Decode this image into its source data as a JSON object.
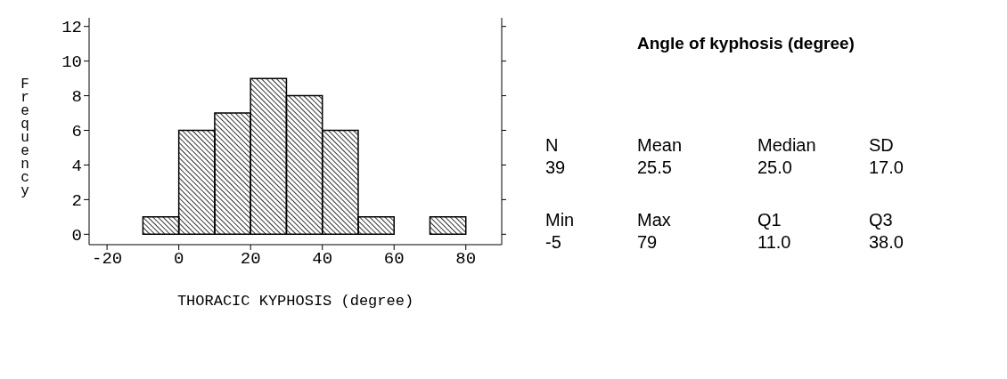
{
  "chart_data": [
    {
      "type": "histogram",
      "xlabel": "THORACIC KYPHOSIS (degree)",
      "ylabel": "Frequency",
      "bins": [
        -10,
        0,
        10,
        20,
        30,
        40,
        50,
        60,
        70,
        80
      ],
      "values": [
        1,
        6,
        7,
        9,
        8,
        6,
        1,
        0,
        1
      ],
      "color": "#000000",
      "xlim": [
        -25,
        90
      ],
      "xticks": [
        -20,
        0,
        20,
        40,
        60,
        80
      ],
      "ylim": [
        -0.6,
        12.5
      ],
      "yticks": [
        0,
        2,
        4,
        6,
        8,
        10,
        12
      ]
    },
    {
      "type": "other",
      "title": "Angle of kyphosis (degree)",
      "annotations": [
        "N",
        "Mean",
        "Median",
        "SD",
        "39",
        "25.5",
        "25.0",
        "17.0",
        "Min",
        "Max",
        "Q1",
        "Q3",
        "-5",
        "79",
        "11.0",
        "38.0"
      ]
    }
  ]
}
